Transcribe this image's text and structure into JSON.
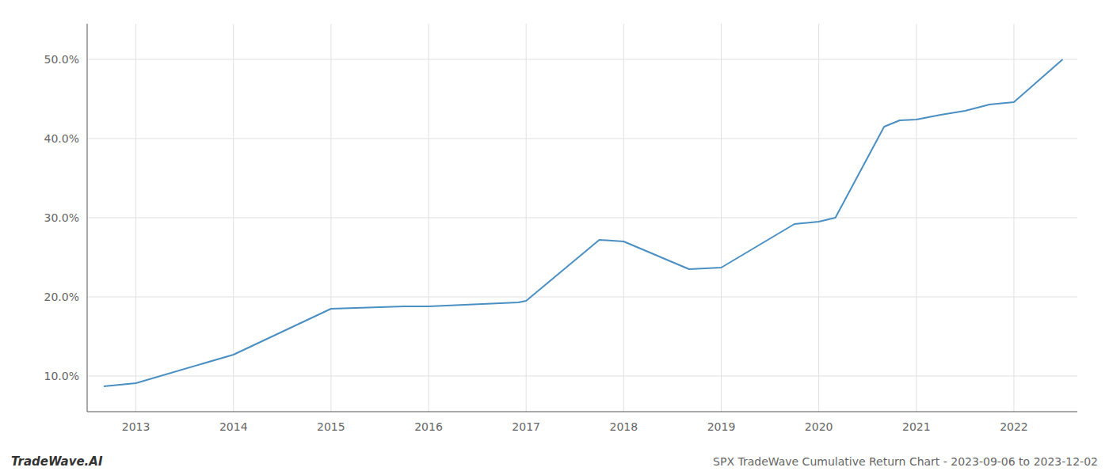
{
  "chart_data": {
    "type": "line",
    "title": "SPX TradeWave Cumulative Return Chart - 2023-09-06 to 2023-12-02",
    "annotations": [
      "TradeWave.AI"
    ],
    "x": [
      2012.67,
      2013.0,
      2014.0,
      2015.0,
      2015.75,
      2016.0,
      2016.92,
      2017.0,
      2017.75,
      2018.0,
      2018.67,
      2019.0,
      2019.75,
      2020.0,
      2020.17,
      2020.67,
      2020.83,
      2021.0,
      2021.25,
      2021.5,
      2021.75,
      2022.0,
      2022.5
    ],
    "values": [
      0.087,
      0.091,
      0.127,
      0.185,
      0.188,
      0.188,
      0.193,
      0.195,
      0.272,
      0.27,
      0.235,
      0.237,
      0.292,
      0.295,
      0.3,
      0.415,
      0.423,
      0.424,
      0.43,
      0.435,
      0.443,
      0.446,
      0.5
    ],
    "color": "#4a8fc2",
    "xlim": [
      2012.5,
      2022.65
    ],
    "ylim": [
      0.055,
      0.545
    ],
    "xticks": [
      2013,
      2014,
      2015,
      2016,
      2017,
      2018,
      2019,
      2020,
      2021,
      2022
    ],
    "yticks": [
      {
        "value": 0.1,
        "label": "10.0%"
      },
      {
        "value": 0.2,
        "label": "20.0%"
      },
      {
        "value": 0.3,
        "label": "30.0%"
      },
      {
        "value": 0.4,
        "label": "40.0%"
      },
      {
        "value": 0.5,
        "label": "50.0%"
      }
    ],
    "grid": true
  }
}
